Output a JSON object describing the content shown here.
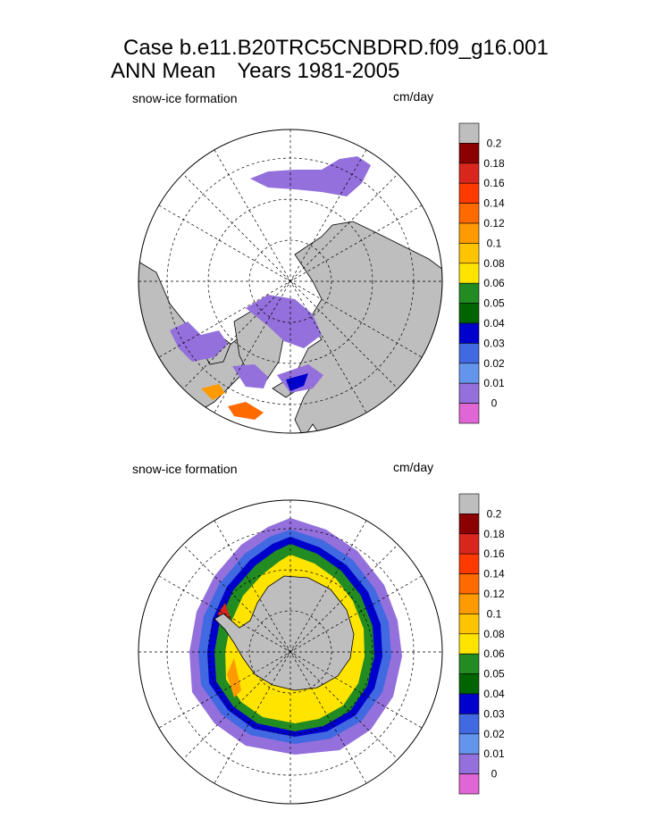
{
  "header": {
    "case_line": "Case b.e11.B20TRC5CNBDRD.f09_g16.001",
    "mean_label": "ANN Mean",
    "years_label": "Years 1981-2005"
  },
  "colors": {
    "land": "#bebebe",
    "ocean": "#ffffff",
    "outline": "#000000"
  },
  "chart_data": [
    {
      "type": "heatmap",
      "hemisphere": "north",
      "title": "snow-ice formation",
      "units": "cm/day",
      "colorbar": {
        "levels": [
          "0.2",
          "0.18",
          "0.16",
          "0.14",
          "0.12",
          "0.1",
          "0.08",
          "0.06",
          "0.05",
          "0.04",
          "0.03",
          "0.02",
          "0.01",
          "0"
        ],
        "colors": [
          "#bebebe",
          "#8b0000",
          "#d9261c",
          "#ff3a00",
          "#ff6a00",
          "#ff9a00",
          "#ffc400",
          "#ffe400",
          "#228b22",
          "#006400",
          "#0000cd",
          "#4169e1",
          "#6495ed",
          "#9370db",
          "#e066d6"
        ]
      }
    },
    {
      "type": "heatmap",
      "hemisphere": "south",
      "title": "snow-ice formation",
      "units": "cm/day",
      "colorbar": {
        "levels": [
          "0.2",
          "0.18",
          "0.16",
          "0.14",
          "0.12",
          "0.1",
          "0.08",
          "0.06",
          "0.05",
          "0.04",
          "0.03",
          "0.02",
          "0.01",
          "0"
        ],
        "colors": [
          "#bebebe",
          "#8b0000",
          "#d9261c",
          "#ff3a00",
          "#ff6a00",
          "#ff9a00",
          "#ffc400",
          "#ffe400",
          "#228b22",
          "#006400",
          "#0000cd",
          "#4169e1",
          "#6495ed",
          "#9370db",
          "#e066d6"
        ]
      }
    }
  ]
}
